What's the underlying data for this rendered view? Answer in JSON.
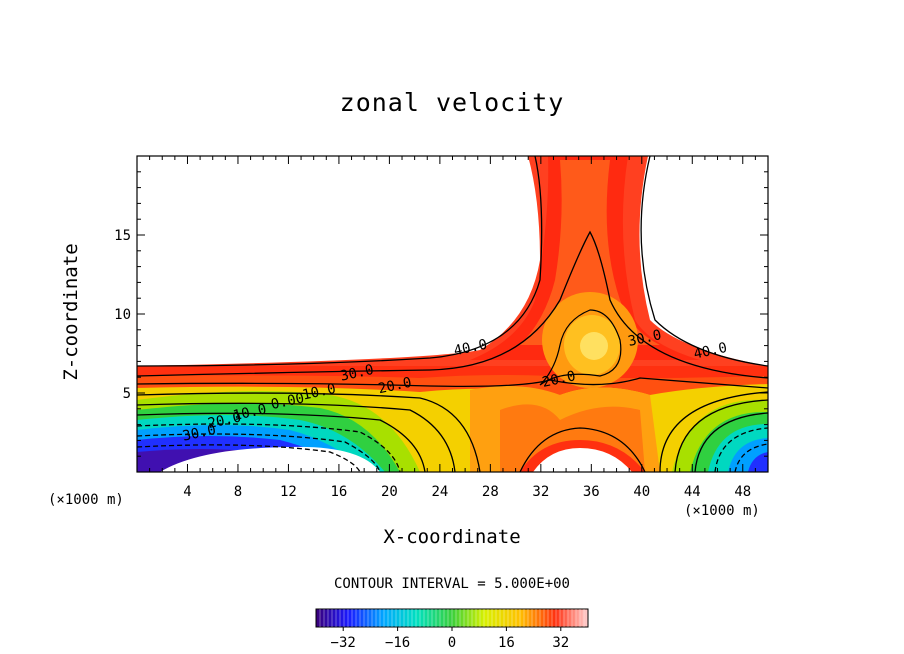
{
  "chart_data": {
    "type": "contour",
    "title": "zonal velocity",
    "xlabel": "X-coordinate",
    "ylabel": "Z-coordinate",
    "x_unit_left": "(×1000 m)",
    "x_unit_right": "(×1000 m)",
    "xlim": [
      0,
      50
    ],
    "ylim": [
      0,
      20
    ],
    "x_ticks": [
      4,
      8,
      12,
      16,
      20,
      24,
      28,
      32,
      36,
      40,
      44,
      48
    ],
    "y_ticks": [
      5,
      10,
      15
    ],
    "contour_interval_text": "CONTOUR INTERVAL = 5.000E+00",
    "contour_labels": [
      {
        "text": "40.0",
        "x": 26.5,
        "y": 7.6
      },
      {
        "text": "40.0",
        "x": 45.5,
        "y": 7.4
      },
      {
        "text": "30.0",
        "x": 17.5,
        "y": 6.0
      },
      {
        "text": "30.0",
        "x": 40.3,
        "y": 8.2
      },
      {
        "text": "20.0",
        "x": 20.5,
        "y": 5.2
      },
      {
        "text": "20.0",
        "x": 33.5,
        "y": 5.6
      },
      {
        "text": "10.0",
        "x": 14.5,
        "y": 4.8
      },
      {
        "text": "0.00",
        "x": 12.0,
        "y": 4.2
      },
      {
        "text": "10.0",
        "x": 9.0,
        "y": 3.5
      },
      {
        "text": "20.0",
        "x": 7.0,
        "y": 3.0
      },
      {
        "text": "30.0",
        "x": 5.0,
        "y": 2.2
      }
    ],
    "colorbar": {
      "ticks": [
        -32,
        -16,
        0,
        16,
        32
      ],
      "tick_labels": [
        "−32",
        "−16",
        "0",
        "16",
        "32"
      ],
      "range": [
        -40,
        40
      ]
    }
  },
  "labels": {
    "title": "zonal velocity",
    "xlabel": "X-coordinate",
    "ylabel": "Z-coordinate",
    "unit_left": "(×1000 m)",
    "unit_right": "(×1000 m)",
    "interval": "CONTOUR INTERVAL = 5.000E+00"
  }
}
